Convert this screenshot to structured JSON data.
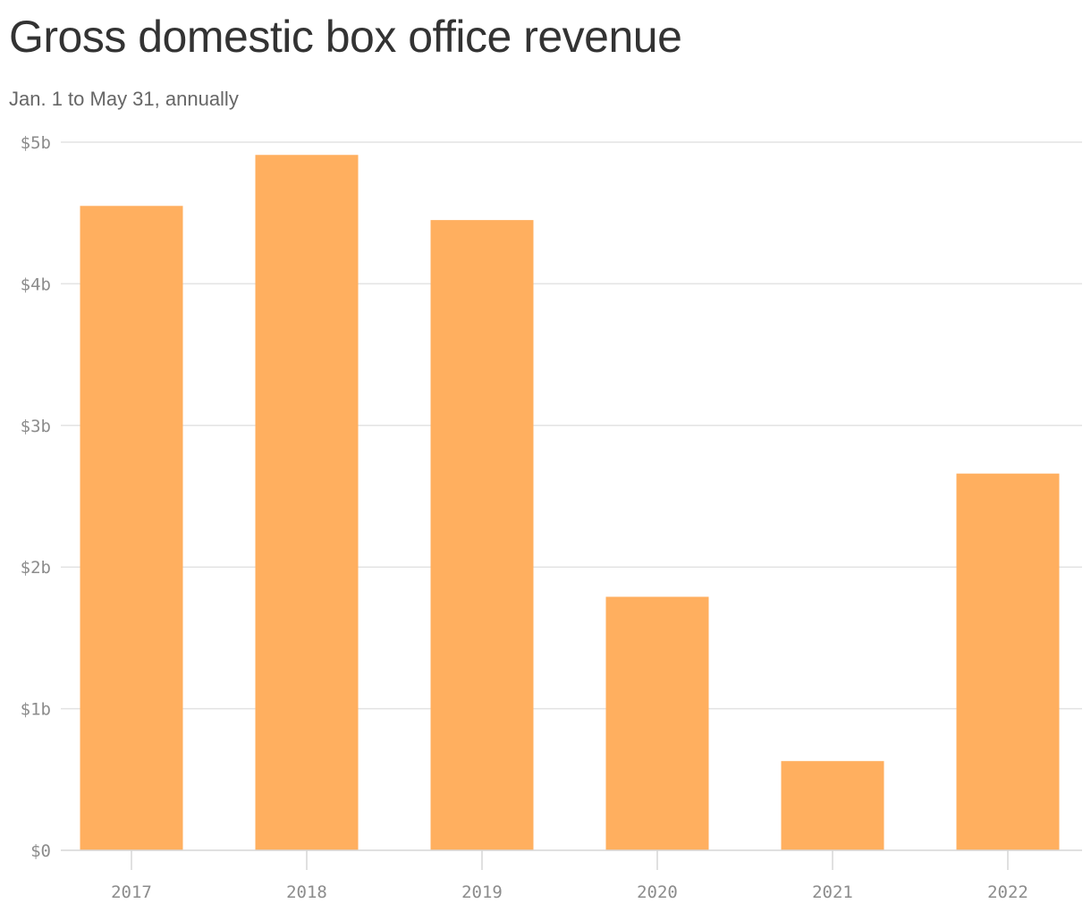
{
  "chart_data": {
    "type": "bar",
    "title": "Gross domestic box office revenue",
    "subtitle": "Jan. 1 to May 31, annually",
    "categories": [
      "2017",
      "2018",
      "2019",
      "2020",
      "2021",
      "2022"
    ],
    "values": [
      4.55,
      4.91,
      4.45,
      1.79,
      0.63,
      2.66
    ],
    "ylim": [
      0,
      5
    ],
    "yticks": [
      0,
      1,
      2,
      3,
      4,
      5
    ],
    "ytick_labels": [
      "$0",
      "$1b",
      "$2b",
      "$3b",
      "$4b",
      "$5b"
    ],
    "grid": true,
    "colors": {
      "bar": "#ffaf5f",
      "grid": "#e3e3e3",
      "axis": "#d6d6d6"
    }
  }
}
